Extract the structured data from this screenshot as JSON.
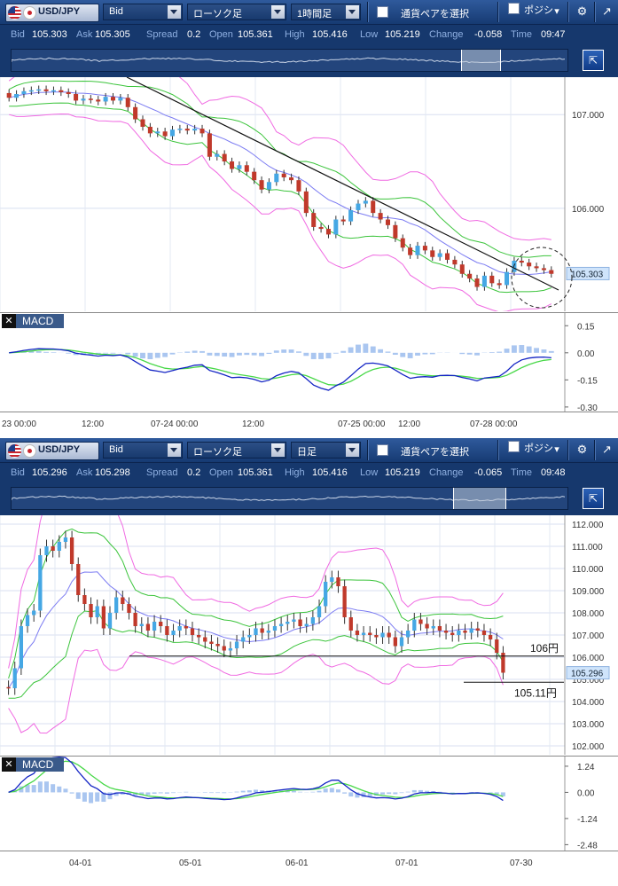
{
  "colors": {
    "toolbar_bg": "#1d4583",
    "up_candle": "#45a7e4",
    "down_candle": "#c0392b",
    "bb_outer": "#f06ae2",
    "bb_mid": "#3bc43b",
    "ma": "#7c7cf2",
    "macd_line": "#1324c4",
    "signal_line": "#48d848",
    "histogram": "#aac6f0",
    "price_label_bg": "#cfe4fb"
  },
  "panels": [
    {
      "pair": "USD/JPY",
      "price_type": "Bid",
      "chart_type": "ローソク足",
      "timeframe": "1時間足",
      "select_pairs_label": "通貨ペアを選択",
      "positions_label": "ポジシ",
      "icons": {
        "settings": "gear-icon",
        "popout": "popout-icon",
        "expand": "expand-icon"
      },
      "quotes": {
        "bid_label": "Bid",
        "bid": "105.303",
        "ask_label": "Ask",
        "ask": "105.305",
        "spread_label": "Spread",
        "spread": "0.2",
        "open_label": "Open",
        "open": "105.361",
        "high_label": "High",
        "high": "105.416",
        "low_label": "Low",
        "low": "105.219",
        "change_label": "Change",
        "change": "-0.058",
        "time_label": "Time",
        "time": "09:47"
      },
      "price_axis": [
        "107.000",
        "106.000",
        "105.303"
      ],
      "current_price": "105.303",
      "macd_title": "MACD",
      "macd_axis": [
        "0.15",
        "0.00",
        "-0.15",
        "-0.30"
      ],
      "time_axis": [
        "23 00:00",
        "12:00",
        "07-24 00:00",
        "12:00",
        "07-25 00:00",
        "12:00",
        "07-28 00:00"
      ]
    },
    {
      "pair": "USD/JPY",
      "price_type": "Bid",
      "chart_type": "ローソク足",
      "timeframe": "日足",
      "select_pairs_label": "通貨ペアを選択",
      "positions_label": "ポジシ",
      "icons": {
        "settings": "gear-icon",
        "popout": "popout-icon",
        "expand": "expand-icon"
      },
      "quotes": {
        "bid_label": "Bid",
        "bid": "105.296",
        "ask_label": "Ask",
        "ask": "105.298",
        "spread_label": "Spread",
        "spread": "0.2",
        "open_label": "Open",
        "open": "105.361",
        "high_label": "High",
        "high": "105.416",
        "low_label": "Low",
        "low": "105.219",
        "change_label": "Change",
        "change": "-0.065",
        "time_label": "Time",
        "time": "09:48"
      },
      "price_axis": [
        "112.000",
        "111.000",
        "110.000",
        "109.000",
        "108.000",
        "107.000",
        "106.000",
        "105.000",
        "104.000",
        "103.000",
        "102.000"
      ],
      "current_price": "105.296",
      "annotations": [
        "106円",
        "105.11円"
      ],
      "macd_title": "MACD",
      "macd_axis": [
        "1.24",
        "0.00",
        "-1.24",
        "-2.48"
      ],
      "time_axis": [
        "04-01",
        "05-01",
        "06-01",
        "07-01",
        "07-30"
      ]
    }
  ],
  "chart_data": [
    {
      "type": "candlestick",
      "series": [
        {
          "name": "close",
          "x": "index",
          "values": [
            107.18,
            107.22,
            107.25,
            107.26,
            107.27,
            107.25,
            107.26,
            107.24,
            107.22,
            107.15,
            107.17,
            107.16,
            107.14,
            107.19,
            107.15,
            107.18,
            107.08,
            106.95,
            106.87,
            106.8,
            106.82,
            106.77,
            106.84,
            106.85,
            106.83,
            106.85,
            106.8,
            106.55,
            106.58,
            106.5,
            106.42,
            106.46,
            106.39,
            106.3,
            106.2,
            106.28,
            106.37,
            106.33,
            106.3,
            106.18,
            105.95,
            105.8,
            105.78,
            105.72,
            105.88,
            105.86,
            105.98,
            106.05,
            106.08,
            105.95,
            105.88,
            105.82,
            105.68,
            105.58,
            105.5,
            105.6,
            105.55,
            105.48,
            105.52,
            105.45,
            105.4,
            105.3,
            105.25,
            105.16,
            105.28,
            105.2,
            105.18,
            105.32,
            105.44,
            105.42,
            105.38,
            105.36,
            105.34,
            105.3
          ]
        }
      ],
      "ylim": [
        104.9,
        107.4
      ],
      "timeframe": "1時間足"
    },
    {
      "type": "candlestick",
      "series": [
        {
          "name": "close",
          "x": "index",
          "values": [
            104.6,
            105.5,
            107.4,
            107.9,
            108.1,
            110.6,
            111.0,
            110.8,
            111.2,
            111.4,
            110.2,
            108.8,
            108.4,
            107.8,
            108.3,
            107.3,
            108.0,
            108.7,
            108.4,
            108.0,
            107.4,
            107.5,
            107.2,
            107.6,
            107.4,
            107.0,
            107.2,
            107.4,
            107.3,
            107.0,
            106.9,
            106.7,
            106.6,
            106.5,
            106.3,
            106.4,
            106.7,
            106.9,
            107.0,
            107.3,
            107.1,
            107.2,
            107.4,
            107.5,
            107.6,
            107.7,
            107.4,
            107.5,
            107.8,
            108.3,
            109.4,
            109.6,
            109.2,
            107.8,
            107.2,
            107.0,
            107.1,
            107.0,
            106.9,
            107.1,
            106.9,
            106.5,
            106.9,
            107.2,
            107.7,
            107.5,
            107.3,
            107.4,
            107.2,
            107.1,
            107.0,
            107.2,
            107.1,
            107.3,
            107.2,
            107.0,
            106.8,
            106.2,
            105.3
          ]
        }
      ],
      "ylim": [
        101.6,
        112.4
      ],
      "annotations": [
        {
          "label": "106円",
          "y": 106.0
        },
        {
          "label": "105.11円",
          "y": 105.11
        }
      ],
      "timeframe": "日足"
    }
  ]
}
